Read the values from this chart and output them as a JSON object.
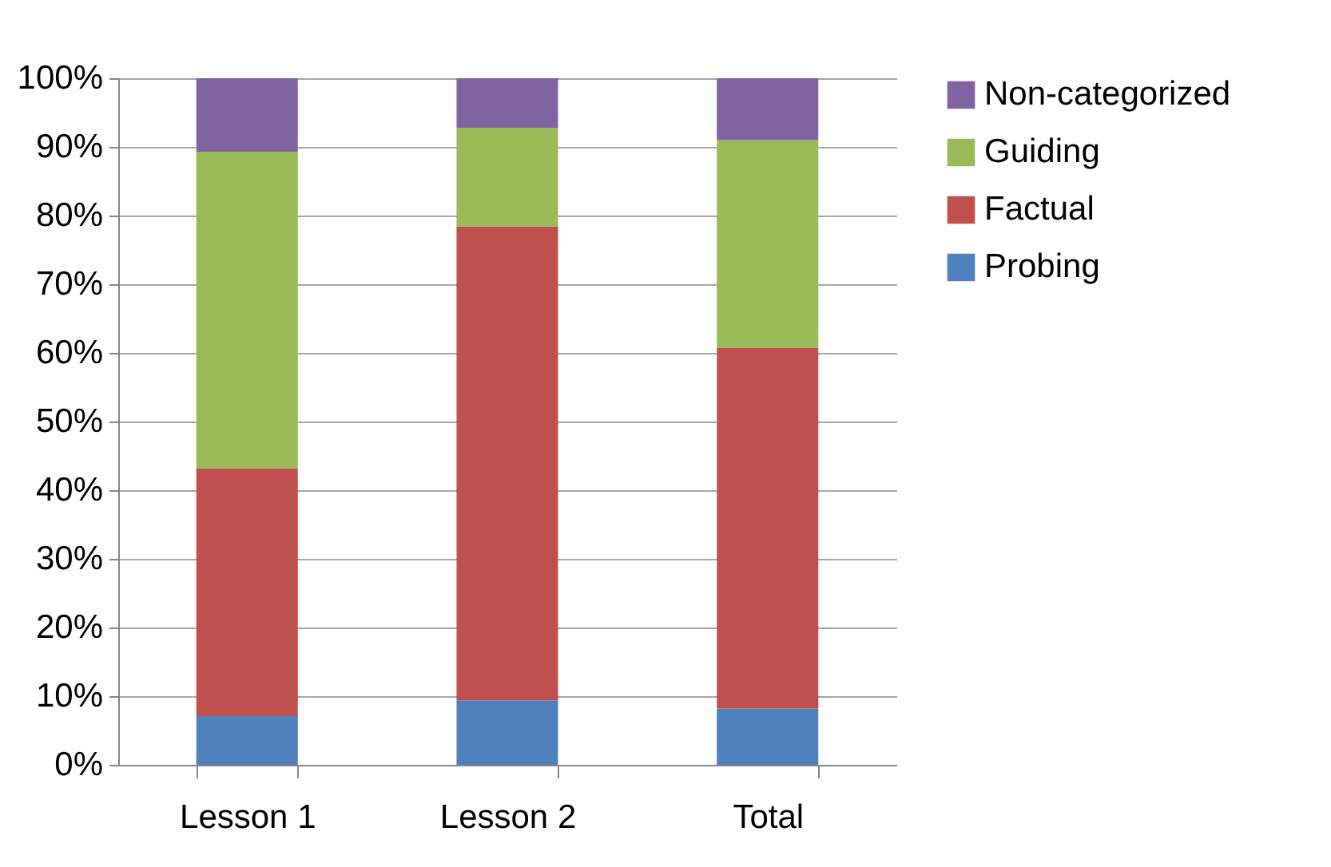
{
  "chart_data": {
    "type": "bar",
    "stacked": true,
    "categories": [
      "Lesson 1",
      "Lesson 2",
      "Total"
    ],
    "series": [
      {
        "name": "Probing",
        "color": "#4f81bd",
        "values": [
          7.1,
          9.4,
          8.2
        ]
      },
      {
        "name": "Factual",
        "color": "#c0504d",
        "values": [
          36.1,
          69.0,
          52.5
        ]
      },
      {
        "name": "Guiding",
        "color": "#9bbb59",
        "values": [
          46.1,
          14.4,
          30.3
        ]
      },
      {
        "name": "Non-categorized",
        "color": "#8064a2",
        "values": [
          10.7,
          7.2,
          9.0
        ]
      }
    ],
    "ylim": [
      0,
      100
    ],
    "yticks": [
      {
        "value": 0,
        "label": "0%"
      },
      {
        "value": 10,
        "label": "10%"
      },
      {
        "value": 20,
        "label": "20%"
      },
      {
        "value": 30,
        "label": "30%"
      },
      {
        "value": 40,
        "label": "40%"
      },
      {
        "value": 50,
        "label": "50%"
      },
      {
        "value": 60,
        "label": "60%"
      },
      {
        "value": 70,
        "label": "70%"
      },
      {
        "value": 80,
        "label": "80%"
      },
      {
        "value": 90,
        "label": "90%"
      },
      {
        "value": 100,
        "label": "100%"
      }
    ],
    "grid": "y",
    "legend": "right"
  }
}
